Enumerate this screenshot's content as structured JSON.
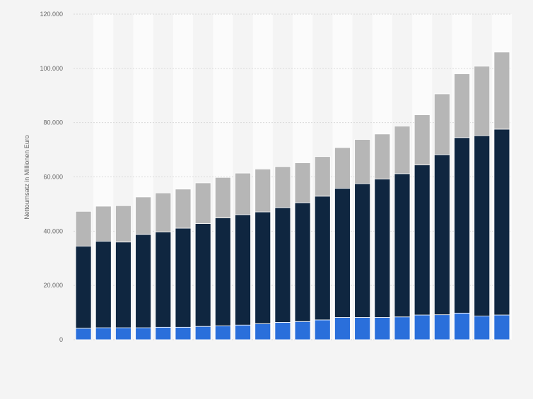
{
  "chart_data": {
    "type": "bar",
    "stacked": true,
    "title": "",
    "xlabel": "",
    "ylabel": "Nettoumsatz in Millionen Euro",
    "ylim": [
      0,
      120000
    ],
    "yticks": [
      0,
      20000,
      40000,
      60000,
      80000,
      100000,
      120000
    ],
    "ytick_labels": [
      "0",
      "20.000",
      "40.000",
      "60.000",
      "80.000",
      "100.000",
      "120.000"
    ],
    "grid": true,
    "legend": "none",
    "colors": {
      "bottom": "#2a6fdb",
      "middle": "#0f2640",
      "top": "#b6b6b6",
      "grid": "#d9d9d9",
      "band": "#fbfbfb"
    },
    "series": [
      {
        "values": [
          4200,
          4400,
          4400,
          4400,
          4600,
          4600,
          4900,
          5100,
          5400,
          5900,
          6400,
          6700,
          7300,
          8200,
          8200,
          8200,
          8400,
          9100,
          9200,
          9800,
          8700,
          9100
        ]
      },
      {
        "values": [
          30300,
          31900,
          31600,
          34400,
          35100,
          36500,
          37900,
          39800,
          40700,
          41200,
          42300,
          43800,
          45600,
          47600,
          49300,
          51000,
          52800,
          55300,
          59000,
          64700,
          66500,
          68500
        ]
      },
      {
        "values": [
          12800,
          12900,
          13400,
          13800,
          14400,
          14400,
          15000,
          14900,
          15300,
          15800,
          15100,
          14700,
          14600,
          15000,
          16300,
          16600,
          17500,
          18500,
          22400,
          23500,
          25600,
          28400
        ]
      }
    ]
  }
}
